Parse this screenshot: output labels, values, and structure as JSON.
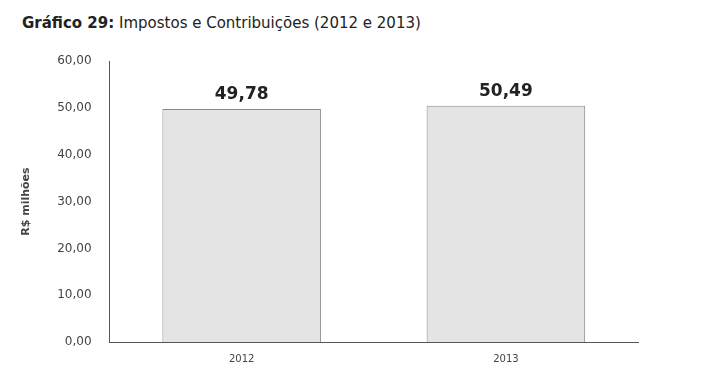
{
  "chart_data": {
    "type": "bar",
    "title": "Gráfico 29: Impostos e Contribuições (2012 e 2013)",
    "y_label": "R$ milhões",
    "categories": [
      "2012",
      "2013"
    ],
    "values": [
      49.78,
      50.49
    ],
    "value_labels": [
      "49,78",
      "50,49"
    ],
    "color": "#e4e4e4",
    "ylim": [
      0,
      60
    ],
    "yticks": [
      {
        "value": 0,
        "label": "0,00"
      },
      {
        "value": 10,
        "label": "10,00"
      },
      {
        "value": 20,
        "label": "20,00"
      },
      {
        "value": 30,
        "label": "30,00"
      },
      {
        "value": 40,
        "label": "40,00"
      },
      {
        "value": 50,
        "label": "50,00"
      },
      {
        "value": 60,
        "label": "60,00"
      }
    ],
    "grid": false,
    "data_labels": true
  }
}
